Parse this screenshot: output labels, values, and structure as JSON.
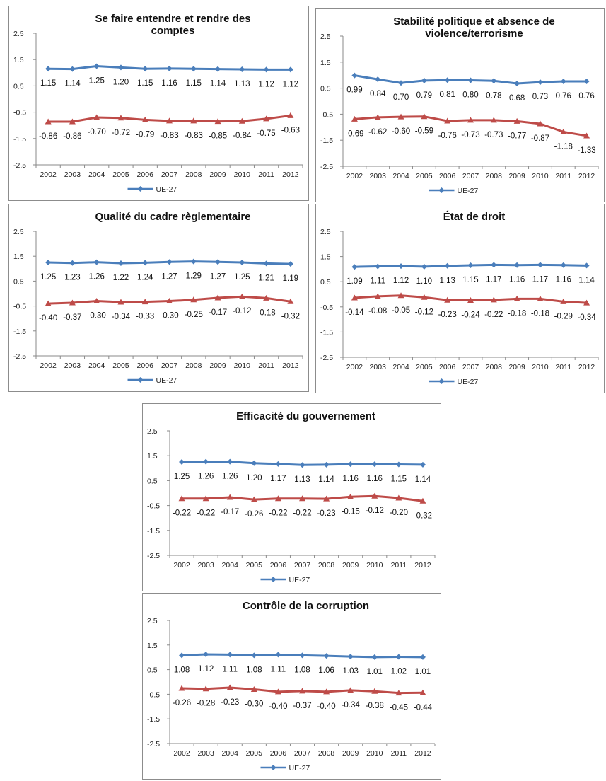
{
  "chart_data": [
    {
      "type": "line",
      "title": [
        "Se faire entendre et rendre des",
        "comptes"
      ],
      "categories": [
        "2002",
        "2003",
        "2004",
        "2005",
        "2006",
        "2007",
        "2008",
        "2009",
        "2010",
        "2011",
        "2012"
      ],
      "yticks": [
        "2.5",
        "1.5",
        "0.5",
        "-0.5",
        "-1.5",
        "-2.5"
      ],
      "ylim": [
        -2.5,
        2.5
      ],
      "series": [
        {
          "name": "UE-27",
          "color": "#4a7ebb",
          "marker": "diamond",
          "values": [
            1.15,
            1.14,
            1.25,
            1.2,
            1.15,
            1.16,
            1.15,
            1.14,
            1.13,
            1.12,
            1.12
          ],
          "labels": [
            "1.15",
            "1.14",
            "1.25",
            "1.20",
            "1.15",
            "1.16",
            "1.15",
            "1.14",
            "1.13",
            "1.12",
            "1.12"
          ]
        },
        {
          "name": "",
          "color": "#be4b48",
          "marker": "triangle",
          "values": [
            -0.86,
            -0.86,
            -0.7,
            -0.72,
            -0.79,
            -0.83,
            -0.83,
            -0.85,
            -0.84,
            -0.75,
            -0.63
          ],
          "labels": [
            "-0.86",
            "-0.86",
            "-0.70",
            "-0.72",
            "-0.79",
            "-0.83",
            "-0.83",
            "-0.85",
            "-0.84",
            "-0.75",
            "-0.63"
          ]
        }
      ],
      "legend": "bottom"
    },
    {
      "type": "line",
      "title": [
        "Stabilité politique et absence de",
        "violence/terrorisme"
      ],
      "categories": [
        "2002",
        "2003",
        "2004",
        "2005",
        "2006",
        "2007",
        "2008",
        "2009",
        "2010",
        "2011",
        "2012"
      ],
      "yticks": [
        "2.5",
        "1.5",
        "0.5",
        "-0.5",
        "-1.5",
        "-2.5"
      ],
      "ylim": [
        -2.5,
        2.5
      ],
      "series": [
        {
          "name": "UE-27",
          "color": "#4a7ebb",
          "marker": "diamond",
          "values": [
            0.99,
            0.84,
            0.7,
            0.79,
            0.81,
            0.8,
            0.78,
            0.68,
            0.73,
            0.76,
            0.76
          ],
          "labels": [
            "0.99",
            "0.84",
            "0.70",
            "0.79",
            "0.81",
            "0.80",
            "0.78",
            "0.68",
            "0.73",
            "0.76",
            "0.76"
          ]
        },
        {
          "name": "",
          "color": "#be4b48",
          "marker": "triangle",
          "values": [
            -0.69,
            -0.62,
            -0.6,
            -0.59,
            -0.76,
            -0.73,
            -0.73,
            -0.77,
            -0.87,
            -1.18,
            -1.33
          ],
          "labels": [
            "-0.69",
            "-0.62",
            "-0.60",
            "-0.59",
            "-0.76",
            "-0.73",
            "-0.73",
            "-0.77",
            "-0.87",
            "-1.18",
            "-1.33"
          ]
        }
      ],
      "legend": "bottom"
    },
    {
      "type": "line",
      "title": [
        "Qualité du cadre règlementaire"
      ],
      "categories": [
        "2002",
        "2003",
        "2004",
        "2005",
        "2006",
        "2007",
        "2008",
        "2009",
        "2010",
        "2011",
        "2012"
      ],
      "yticks": [
        "2.5",
        "1.5",
        "0.5",
        "-0.5",
        "-1.5",
        "-2.5"
      ],
      "ylim": [
        -2.5,
        2.5
      ],
      "series": [
        {
          "name": "UE-27",
          "color": "#4a7ebb",
          "marker": "diamond",
          "values": [
            1.25,
            1.23,
            1.26,
            1.22,
            1.24,
            1.27,
            1.29,
            1.27,
            1.25,
            1.21,
            1.19
          ],
          "labels": [
            "1.25",
            "1.23",
            "1.26",
            "1.22",
            "1.24",
            "1.27",
            "1.29",
            "1.27",
            "1.25",
            "1.21",
            "1.19"
          ]
        },
        {
          "name": "",
          "color": "#be4b48",
          "marker": "triangle",
          "values": [
            -0.4,
            -0.37,
            -0.3,
            -0.34,
            -0.33,
            -0.3,
            -0.25,
            -0.17,
            -0.12,
            -0.18,
            -0.32
          ],
          "labels": [
            "-0.40",
            "-0.37",
            "-0.30",
            "-0.34",
            "-0.33",
            "-0.30",
            "-0.25",
            "-0.17",
            "-0.12",
            "-0.18",
            "-0.32"
          ]
        }
      ],
      "legend": "bottom"
    },
    {
      "type": "line",
      "title": [
        "État de droit"
      ],
      "categories": [
        "2002",
        "2003",
        "2004",
        "2005",
        "2006",
        "2007",
        "2008",
        "2009",
        "2010",
        "2011",
        "2012"
      ],
      "yticks": [
        "2.5",
        "1.5",
        "0.5",
        "-0.5",
        "-1.5",
        "-2.5"
      ],
      "ylim": [
        -2.5,
        2.5
      ],
      "series": [
        {
          "name": "UE-27",
          "color": "#4a7ebb",
          "marker": "diamond",
          "values": [
            1.09,
            1.11,
            1.12,
            1.1,
            1.13,
            1.15,
            1.17,
            1.16,
            1.17,
            1.16,
            1.14
          ],
          "labels": [
            "1.09",
            "1.11",
            "1.12",
            "1.10",
            "1.13",
            "1.15",
            "1.17",
            "1.16",
            "1.17",
            "1.16",
            "1.14"
          ]
        },
        {
          "name": "",
          "color": "#be4b48",
          "marker": "triangle",
          "values": [
            -0.14,
            -0.08,
            -0.05,
            -0.12,
            -0.23,
            -0.24,
            -0.22,
            -0.18,
            -0.18,
            -0.29,
            -0.34
          ],
          "labels": [
            "-0.14",
            "-0.08",
            "-0.05",
            "-0.12",
            "-0.23",
            "-0.24",
            "-0.22",
            "-0.18",
            "-0.18",
            "-0.29",
            "-0.34"
          ]
        }
      ],
      "legend": "bottom"
    },
    {
      "type": "line",
      "title": [
        "Efficacité du gouvernement"
      ],
      "categories": [
        "2002",
        "2003",
        "2004",
        "2005",
        "2006",
        "2007",
        "2008",
        "2009",
        "2010",
        "2011",
        "2012"
      ],
      "yticks": [
        "2.5",
        "1.5",
        "0.5",
        "-0.5",
        "-1.5",
        "-2.5"
      ],
      "ylim": [
        -2.5,
        2.5
      ],
      "series": [
        {
          "name": "UE-27",
          "color": "#4a7ebb",
          "marker": "diamond",
          "values": [
            1.25,
            1.26,
            1.26,
            1.2,
            1.17,
            1.13,
            1.14,
            1.16,
            1.16,
            1.15,
            1.14
          ],
          "labels": [
            "1.25",
            "1.26",
            "1.26",
            "1.20",
            "1.17",
            "1.13",
            "1.14",
            "1.16",
            "1.16",
            "1.15",
            "1.14"
          ]
        },
        {
          "name": "",
          "color": "#be4b48",
          "marker": "triangle",
          "values": [
            -0.22,
            -0.22,
            -0.17,
            -0.26,
            -0.22,
            -0.22,
            -0.23,
            -0.15,
            -0.12,
            -0.2,
            -0.32
          ],
          "labels": [
            "-0.22",
            "-0.22",
            "-0.17",
            "-0.26",
            "-0.22",
            "-0.22",
            "-0.23",
            "-0.15",
            "-0.12",
            "-0.20",
            "-0.32"
          ]
        }
      ],
      "legend": "bottom"
    },
    {
      "type": "line",
      "title": [
        "Contrôle de la corruption"
      ],
      "categories": [
        "2002",
        "2003",
        "2004",
        "2005",
        "2006",
        "2007",
        "2008",
        "2009",
        "2010",
        "2011",
        "2012"
      ],
      "yticks": [
        "2.5",
        "1.5",
        "0.5",
        "-0.5",
        "-1.5",
        "-2.5"
      ],
      "ylim": [
        -2.5,
        2.5
      ],
      "series": [
        {
          "name": "UE-27",
          "color": "#4a7ebb",
          "marker": "diamond",
          "values": [
            1.08,
            1.12,
            1.11,
            1.08,
            1.11,
            1.08,
            1.06,
            1.03,
            1.01,
            1.02,
            1.01
          ],
          "labels": [
            "1.08",
            "1.12",
            "1.11",
            "1.08",
            "1.11",
            "1.08",
            "1.06",
            "1.03",
            "1.01",
            "1.02",
            "1.01"
          ]
        },
        {
          "name": "",
          "color": "#be4b48",
          "marker": "triangle",
          "values": [
            -0.26,
            -0.28,
            -0.23,
            -0.3,
            -0.4,
            -0.37,
            -0.4,
            -0.34,
            -0.38,
            -0.45,
            -0.44
          ],
          "labels": [
            "-0.26",
            "-0.28",
            "-0.23",
            "-0.30",
            "-0.40",
            "-0.37",
            "-0.40",
            "-0.34",
            "-0.38",
            "-0.45",
            "-0.44"
          ]
        }
      ],
      "legend": "bottom"
    }
  ]
}
